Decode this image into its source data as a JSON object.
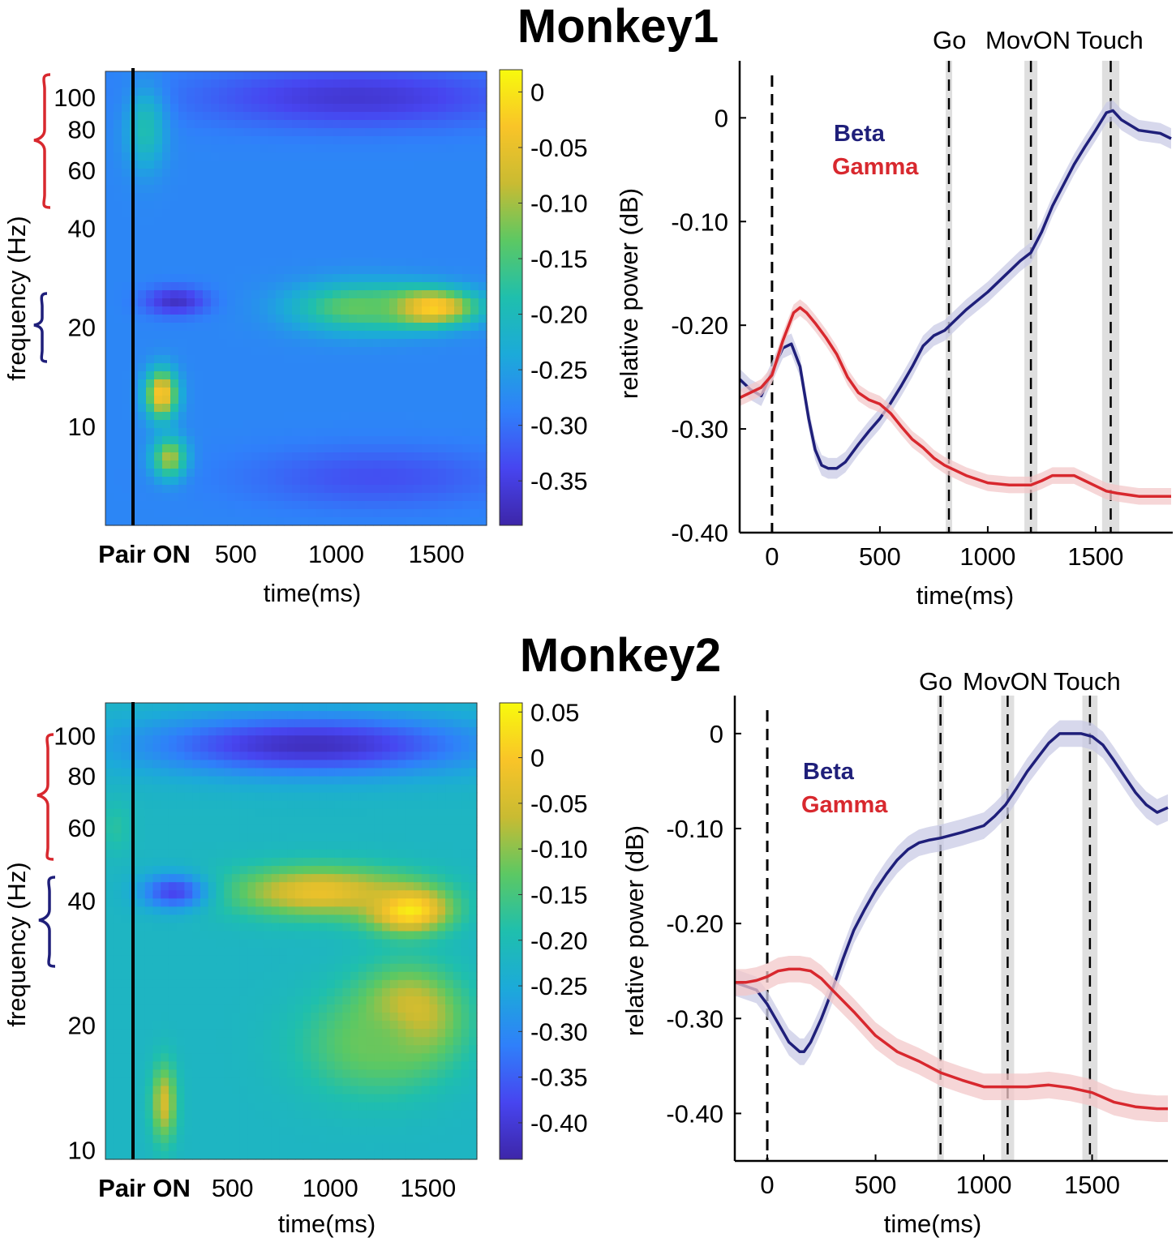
{
  "colors": {
    "beta": "#1f1f7a",
    "gamma": "#d8282e",
    "beta_band": "#c9cbe6",
    "gamma_band": "#f3c8ca",
    "event_band": "#d9d9d9",
    "red_brace": "#d8282e",
    "blue_brace": "#1f1f7a"
  },
  "chart_data": [
    {
      "id": "m1-tf",
      "type": "heatmap",
      "title": "Monkey1",
      "xlabel": "time(ms)",
      "ylabel": "frequency (Hz)",
      "xlim": [
        -150,
        1750
      ],
      "ylim": [
        5,
        120
      ],
      "x_ticks": [
        {
          "v": 0,
          "label": "Pair ON"
        },
        {
          "v": 500,
          "label": "500"
        },
        {
          "v": 1000,
          "label": "1000"
        },
        {
          "v": 1500,
          "label": "1500"
        }
      ],
      "y_ticks": [
        {
          "v": 10,
          "label": "10"
        },
        {
          "v": 20,
          "label": "20"
        },
        {
          "v": 40,
          "label": "40"
        },
        {
          "v": 60,
          "label": "60"
        },
        {
          "v": 80,
          "label": "80"
        },
        {
          "v": 100,
          "label": "100"
        }
      ],
      "colorbar": {
        "clim": [
          -0.39,
          0.02
        ],
        "ticks": [
          {
            "v": 0,
            "label": "0"
          },
          {
            "v": -0.05,
            "label": "-0.05"
          },
          {
            "v": -0.1,
            "label": "-0.10"
          },
          {
            "v": -0.15,
            "label": "-0.15"
          },
          {
            "v": -0.2,
            "label": "-0.20"
          },
          {
            "v": -0.25,
            "label": "-0.25"
          },
          {
            "v": -0.3,
            "label": "-0.30"
          },
          {
            "v": -0.35,
            "label": "-0.35"
          }
        ]
      },
      "bands": [
        {
          "name": "Gamma",
          "range_hz": [
            55,
            120
          ]
        },
        {
          "name": "Beta",
          "range_hz": [
            18,
            30
          ]
        }
      ],
      "background_value": -0.28,
      "blobs": [
        {
          "t": 1450,
          "f": 23,
          "value": 0.03,
          "st": 170,
          "sf": 0.09
        },
        {
          "t": 1100,
          "f": 23,
          "value": -0.13,
          "st": 230,
          "sf": 0.12
        },
        {
          "t": 130,
          "f": 12.5,
          "value": -0.02,
          "st": 55,
          "sf": 0.12
        },
        {
          "t": 170,
          "f": 8,
          "value": -0.08,
          "st": 60,
          "sf": 0.1
        },
        {
          "t": 200,
          "f": 24,
          "value": -0.37,
          "st": 110,
          "sf": 0.07
        },
        {
          "t": 1100,
          "f": 100,
          "value": -0.36,
          "st": 550,
          "sf": 0.15
        },
        {
          "t": 1200,
          "f": 7,
          "value": -0.33,
          "st": 450,
          "sf": 0.15
        },
        {
          "t": 50,
          "f": 80,
          "value": -0.19,
          "st": 70,
          "sf": 0.2
        }
      ]
    },
    {
      "id": "m1-line",
      "type": "line",
      "xlabel": "time(ms)",
      "ylabel": "relative power (dB)",
      "xlim": [
        -150,
        1850
      ],
      "ylim": [
        -0.4,
        0.055
      ],
      "x_ticks": [
        {
          "v": 0,
          "label": "0"
        },
        {
          "v": 500,
          "label": "500"
        },
        {
          "v": 1000,
          "label": "1000"
        },
        {
          "v": 1500,
          "label": "1500"
        }
      ],
      "y_ticks": [
        {
          "v": 0,
          "label": "0"
        },
        {
          "v": -0.1,
          "label": "-0.10"
        },
        {
          "v": -0.2,
          "label": "-0.20"
        },
        {
          "v": -0.3,
          "label": "-0.30"
        },
        {
          "v": -0.4,
          "label": "-0.40"
        }
      ],
      "events": [
        {
          "label": "Go",
          "t": 820,
          "halfwidth": 15
        },
        {
          "label": "MovON",
          "t": 1200,
          "halfwidth": 30
        },
        {
          "label": "Touch",
          "t": 1570,
          "halfwidth": 40
        }
      ],
      "series": [
        {
          "name": "Beta",
          "x": [
            -150,
            -100,
            -50,
            0,
            50,
            90,
            130,
            170,
            200,
            230,
            260,
            300,
            340,
            400,
            450,
            500,
            550,
            600,
            650,
            700,
            750,
            800,
            850,
            900,
            1000,
            1100,
            1150,
            1200,
            1250,
            1300,
            1350,
            1400,
            1450,
            1500,
            1550,
            1580,
            1620,
            1700,
            1800,
            1850
          ],
          "y": [
            -0.252,
            -0.262,
            -0.268,
            -0.245,
            -0.222,
            -0.218,
            -0.24,
            -0.29,
            -0.32,
            -0.335,
            -0.338,
            -0.338,
            -0.332,
            -0.315,
            -0.302,
            -0.29,
            -0.275,
            -0.258,
            -0.24,
            -0.22,
            -0.21,
            -0.205,
            -0.195,
            -0.185,
            -0.168,
            -0.148,
            -0.138,
            -0.13,
            -0.11,
            -0.085,
            -0.065,
            -0.045,
            -0.028,
            -0.012,
            0.005,
            0.007,
            -0.002,
            -0.012,
            -0.015,
            -0.02
          ],
          "ci": 0.01
        },
        {
          "name": "Gamma",
          "x": [
            -150,
            -100,
            -50,
            0,
            50,
            100,
            130,
            160,
            200,
            250,
            300,
            350,
            400,
            450,
            500,
            550,
            600,
            650,
            700,
            750,
            800,
            900,
            1000,
            1100,
            1200,
            1250,
            1300,
            1350,
            1400,
            1450,
            1500,
            1550,
            1600,
            1700,
            1800,
            1850
          ],
          "y": [
            -0.27,
            -0.265,
            -0.26,
            -0.248,
            -0.215,
            -0.188,
            -0.183,
            -0.188,
            -0.198,
            -0.212,
            -0.228,
            -0.25,
            -0.265,
            -0.272,
            -0.276,
            -0.285,
            -0.298,
            -0.31,
            -0.318,
            -0.328,
            -0.335,
            -0.345,
            -0.352,
            -0.354,
            -0.354,
            -0.35,
            -0.345,
            -0.345,
            -0.345,
            -0.35,
            -0.355,
            -0.36,
            -0.362,
            -0.365,
            -0.365,
            -0.365
          ],
          "ci": 0.008
        }
      ]
    },
    {
      "id": "m2-tf",
      "type": "heatmap",
      "title": "Monkey2",
      "xlabel": "time(ms)",
      "ylabel": "frequency (Hz)",
      "xlim": [
        -150,
        1750
      ],
      "ylim": [
        9.5,
        120
      ],
      "x_ticks": [
        {
          "v": 0,
          "label": "Pair ON"
        },
        {
          "v": 500,
          "label": "500"
        },
        {
          "v": 1000,
          "label": "1000"
        },
        {
          "v": 1500,
          "label": "1500"
        }
      ],
      "y_ticks": [
        {
          "v": 10,
          "label": "10"
        },
        {
          "v": 20,
          "label": "20"
        },
        {
          "v": 40,
          "label": "40"
        },
        {
          "v": 60,
          "label": "60"
        },
        {
          "v": 80,
          "label": "80"
        },
        {
          "v": 100,
          "label": "100"
        }
      ],
      "colorbar": {
        "clim": [
          -0.44,
          0.06
        ],
        "ticks": [
          {
            "v": 0.05,
            "label": "0.05"
          },
          {
            "v": 0,
            "label": "0"
          },
          {
            "v": -0.05,
            "label": "-0.05"
          },
          {
            "v": -0.1,
            "label": "-0.10"
          },
          {
            "v": -0.15,
            "label": "-0.15"
          },
          {
            "v": -0.2,
            "label": "-0.20"
          },
          {
            "v": -0.25,
            "label": "-0.25"
          },
          {
            "v": -0.3,
            "label": "-0.30"
          },
          {
            "v": -0.35,
            "label": "-0.35"
          },
          {
            "v": -0.4,
            "label": "-0.40"
          }
        ]
      },
      "bands": [
        {
          "name": "Gamma",
          "range_hz": [
            55,
            100
          ]
        },
        {
          "name": "Beta",
          "range_hz": [
            30,
            50
          ]
        }
      ],
      "background_value": -0.22,
      "blobs": [
        {
          "t": 1400,
          "f": 38,
          "value": 0.06,
          "st": 150,
          "sf": 0.09
        },
        {
          "t": 1400,
          "f": 21,
          "value": 0.0,
          "st": 180,
          "sf": 0.18
        },
        {
          "t": 950,
          "f": 42,
          "value": -0.02,
          "st": 320,
          "sf": 0.1
        },
        {
          "t": 1200,
          "f": 18,
          "value": -0.12,
          "st": 250,
          "sf": 0.2
        },
        {
          "t": 150,
          "f": 13,
          "value": -0.05,
          "st": 45,
          "sf": 0.15
        },
        {
          "t": 200,
          "f": 42,
          "value": -0.38,
          "st": 120,
          "sf": 0.07
        },
        {
          "t": 900,
          "f": 95,
          "value": -0.42,
          "st": 600,
          "sf": 0.12
        },
        {
          "t": -100,
          "f": 60,
          "value": -0.18,
          "st": 60,
          "sf": 0.1
        }
      ]
    },
    {
      "id": "m2-line",
      "type": "line",
      "xlabel": "time(ms)",
      "ylabel": "relative power (dB)",
      "xlim": [
        -150,
        1850
      ],
      "ylim": [
        -0.45,
        0.04
      ],
      "x_ticks": [
        {
          "v": 0,
          "label": "0"
        },
        {
          "v": 500,
          "label": "500"
        },
        {
          "v": 1000,
          "label": "1000"
        },
        {
          "v": 1500,
          "label": "1500"
        }
      ],
      "y_ticks": [
        {
          "v": 0,
          "label": "0"
        },
        {
          "v": -0.1,
          "label": "-0.10"
        },
        {
          "v": -0.2,
          "label": "-0.20"
        },
        {
          "v": -0.3,
          "label": "-0.30"
        },
        {
          "v": -0.4,
          "label": "-0.40"
        }
      ],
      "events": [
        {
          "label": "Go",
          "t": 800,
          "halfwidth": 15
        },
        {
          "label": "MovON",
          "t": 1110,
          "halfwidth": 30
        },
        {
          "label": "Touch",
          "t": 1490,
          "halfwidth": 35
        }
      ],
      "series": [
        {
          "name": "Beta",
          "x": [
            -150,
            -50,
            0,
            50,
            100,
            150,
            170,
            200,
            250,
            300,
            350,
            400,
            450,
            500,
            550,
            600,
            650,
            700,
            750,
            800,
            850,
            900,
            1000,
            1050,
            1100,
            1150,
            1200,
            1250,
            1300,
            1350,
            1400,
            1450,
            1500,
            1550,
            1600,
            1650,
            1700,
            1750,
            1800,
            1850
          ],
          "y": [
            -0.262,
            -0.27,
            -0.285,
            -0.305,
            -0.325,
            -0.335,
            -0.335,
            -0.325,
            -0.3,
            -0.27,
            -0.237,
            -0.207,
            -0.185,
            -0.165,
            -0.148,
            -0.133,
            -0.122,
            -0.115,
            -0.112,
            -0.11,
            -0.107,
            -0.104,
            -0.097,
            -0.087,
            -0.075,
            -0.058,
            -0.04,
            -0.025,
            -0.01,
            0.0,
            0.0,
            0.0,
            -0.003,
            -0.012,
            -0.028,
            -0.045,
            -0.062,
            -0.075,
            -0.083,
            -0.078
          ],
          "ci": 0.014
        },
        {
          "name": "Gamma",
          "x": [
            -150,
            -100,
            -50,
            0,
            50,
            100,
            150,
            200,
            250,
            300,
            400,
            500,
            600,
            700,
            800,
            900,
            1000,
            1100,
            1200,
            1300,
            1400,
            1500,
            1550,
            1600,
            1700,
            1800,
            1850
          ],
          "y": [
            -0.262,
            -0.262,
            -0.26,
            -0.256,
            -0.25,
            -0.248,
            -0.248,
            -0.25,
            -0.258,
            -0.27,
            -0.293,
            -0.318,
            -0.335,
            -0.345,
            -0.357,
            -0.365,
            -0.372,
            -0.372,
            -0.372,
            -0.37,
            -0.373,
            -0.378,
            -0.383,
            -0.388,
            -0.393,
            -0.395,
            -0.395
          ],
          "ci": 0.014
        }
      ]
    }
  ]
}
